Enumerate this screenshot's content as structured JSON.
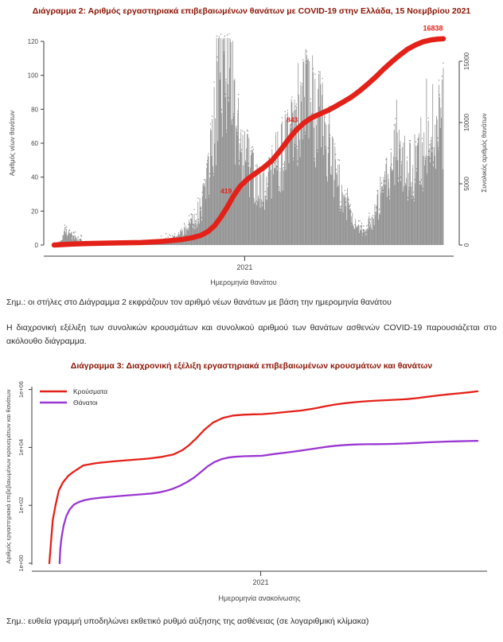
{
  "page": {
    "note1": "Σημ.: οι στήλες στο Διάγραμμα 2 εκφράζουν τον αριθμό νέων θανάτων με βάση την ημερομηνία θανάτου",
    "paragraph": "Η διαχρονική εξέλιξη των συνολικών κρουσμάτων και συνολικού αριθμού των θανάτων ασθενών COVID-19 παρουσιάζεται στο ακόλουθο διάγραμμα.",
    "note2": "Σημ.: ευθεία γραμμή υποδηλώνει εκθετικό ρυθμό αύξησης της ασθένειας (σε λογαριθμική κλίμακα)"
  },
  "colors": {
    "accent_red": "#e32119",
    "accent_purple": "#9a36d2",
    "bars": "#8f8f8f",
    "bar_speck": "#4d4d4d",
    "title": "#8b1505",
    "text": "#2b2b2b",
    "axis": "#3c3c3c",
    "tick_text": "#444444"
  },
  "chart_data": [
    {
      "id": "chart2",
      "type": "bar",
      "title": "Διάγραμμα 2: Αριθμός εργαστηριακά επιβεβαιωμένων θανάτων με COVID-19 στην Ελλάδα, 15 Νοεμβρίου 2021",
      "xlabel": "Ημερομηνία θανάτου",
      "ylabel_left": "Αριθμός νέων θανάτων",
      "ylabel_right": "Συνολικός αριθμός θανάτων",
      "yticks_left": [
        0,
        20,
        40,
        60,
        80,
        100,
        120
      ],
      "ylim_left": [
        0,
        124
      ],
      "yticks_right": [
        0,
        5000,
        10000,
        15000
      ],
      "ylim_right": [
        0,
        15000
      ],
      "x_ticks": [
        {
          "label": "2021",
          "day": 306
        }
      ],
      "days_total": 625,
      "daily_envelope": [
        [
          0,
          0
        ],
        [
          8,
          2
        ],
        [
          14,
          5
        ],
        [
          20,
          8
        ],
        [
          26,
          6
        ],
        [
          32,
          5
        ],
        [
          40,
          3
        ],
        [
          50,
          2
        ],
        [
          62,
          1
        ],
        [
          75,
          1
        ],
        [
          90,
          1
        ],
        [
          105,
          1
        ],
        [
          120,
          1
        ],
        [
          135,
          1
        ],
        [
          150,
          2
        ],
        [
          162,
          2
        ],
        [
          175,
          3
        ],
        [
          186,
          4
        ],
        [
          196,
          5
        ],
        [
          205,
          7
        ],
        [
          212,
          9
        ],
        [
          220,
          12
        ],
        [
          228,
          16
        ],
        [
          236,
          22
        ],
        [
          243,
          32
        ],
        [
          249,
          45
        ],
        [
          255,
          62
        ],
        [
          260,
          80
        ],
        [
          265,
          100
        ],
        [
          269,
          113
        ],
        [
          273,
          120
        ],
        [
          277,
          113
        ],
        [
          281,
          102
        ],
        [
          286,
          92
        ],
        [
          291,
          82
        ],
        [
          296,
          72
        ],
        [
          301,
          64
        ],
        [
          306,
          56
        ],
        [
          312,
          48
        ],
        [
          318,
          42
        ],
        [
          325,
          37
        ],
        [
          332,
          34
        ],
        [
          340,
          35
        ],
        [
          347,
          39
        ],
        [
          354,
          45
        ],
        [
          361,
          52
        ],
        [
          368,
          58
        ],
        [
          375,
          64
        ],
        [
          382,
          71
        ],
        [
          388,
          78
        ],
        [
          394,
          85
        ],
        [
          400,
          92
        ],
        [
          405,
          97
        ],
        [
          410,
          93
        ],
        [
          415,
          87
        ],
        [
          421,
          81
        ],
        [
          428,
          73
        ],
        [
          435,
          64
        ],
        [
          442,
          55
        ],
        [
          449,
          47
        ],
        [
          456,
          39
        ],
        [
          463,
          32
        ],
        [
          470,
          25
        ],
        [
          477,
          19
        ],
        [
          483,
          14
        ],
        [
          489,
          11
        ],
        [
          495,
          9
        ],
        [
          501,
          10
        ],
        [
          507,
          13
        ],
        [
          513,
          17
        ],
        [
          519,
          23
        ],
        [
          525,
          30
        ],
        [
          531,
          36
        ],
        [
          537,
          42
        ],
        [
          543,
          48
        ],
        [
          549,
          52
        ],
        [
          555,
          54
        ],
        [
          560,
          52
        ],
        [
          566,
          48
        ],
        [
          572,
          45
        ],
        [
          578,
          46
        ],
        [
          584,
          50
        ],
        [
          590,
          55
        ],
        [
          596,
          60
        ],
        [
          602,
          65
        ],
        [
          608,
          70
        ],
        [
          614,
          74
        ],
        [
          620,
          78
        ],
        [
          625,
          80
        ]
      ],
      "cumulative": [
        [
          0,
          0
        ],
        [
          30,
          80
        ],
        [
          60,
          130
        ],
        [
          100,
          170
        ],
        [
          140,
          200
        ],
        [
          175,
          300
        ],
        [
          205,
          450
        ],
        [
          222,
          600
        ],
        [
          235,
          780
        ],
        [
          247,
          1100
        ],
        [
          258,
          1600
        ],
        [
          268,
          2300
        ],
        [
          278,
          3100
        ],
        [
          288,
          4000
        ],
        [
          298,
          4750
        ],
        [
          310,
          5350
        ],
        [
          322,
          5800
        ],
        [
          336,
          6300
        ],
        [
          350,
          6900
        ],
        [
          363,
          7700
        ],
        [
          376,
          8600
        ],
        [
          389,
          9400
        ],
        [
          402,
          10000
        ],
        [
          414,
          10400
        ],
        [
          427,
          10700
        ],
        [
          440,
          11000
        ],
        [
          453,
          11350
        ],
        [
          465,
          11700
        ],
        [
          478,
          12100
        ],
        [
          491,
          12600
        ],
        [
          504,
          13150
        ],
        [
          517,
          13750
        ],
        [
          529,
          14350
        ],
        [
          542,
          14950
        ],
        [
          555,
          15500
        ],
        [
          568,
          16000
        ],
        [
          581,
          16350
        ],
        [
          593,
          16600
        ],
        [
          606,
          16750
        ],
        [
          616,
          16810
        ],
        [
          625,
          16838
        ]
      ],
      "annotations": [
        {
          "label": "419",
          "day": 284
        },
        {
          "label": "843",
          "day": 390
        }
      ],
      "end_label": {
        "label": "16838",
        "day": 625,
        "value": 16838
      }
    },
    {
      "id": "chart3",
      "type": "line",
      "log_scale": true,
      "title": "Διάγραμμα 3: Διαχρονική εξέλιξη εργαστηριακά επιβεβαιωμένων κρουσμάτων και θανάτων",
      "xlabel": "Ημερομηνία ανακοίνωσης",
      "ylabel": "Αριθμός εργαστηριακά επιβεβαιωμένων κρουσμάτων και θανάτων",
      "yticks": [
        {
          "label": "1e+00",
          "value": 1
        },
        {
          "label": "1e+02",
          "value": 100
        },
        {
          "label": "1e+04",
          "value": 10000
        },
        {
          "label": "1e+06",
          "value": 1000000
        }
      ],
      "x_ticks": [
        {
          "label": "2021",
          "day": 310
        }
      ],
      "days_total": 628,
      "legend": [
        "Κρούσματα",
        "Θάνατοι"
      ],
      "series": [
        {
          "name": "Κρούσματα",
          "color_key": "accent_red",
          "points": [
            [
              0,
              1
            ],
            [
              2,
              4
            ],
            [
              5,
              31
            ],
            [
              9,
              99
            ],
            [
              14,
              331
            ],
            [
              20,
              624
            ],
            [
              28,
              1061
            ],
            [
              35,
              1415
            ],
            [
              50,
              2400
            ],
            [
              70,
              2900
            ],
            [
              95,
              3300
            ],
            [
              120,
              3700
            ],
            [
              145,
              4100
            ],
            [
              165,
              4700
            ],
            [
              182,
              5700
            ],
            [
              195,
              8000
            ],
            [
              205,
              12000
            ],
            [
              215,
              20000
            ],
            [
              228,
              42000
            ],
            [
              240,
              72000
            ],
            [
              255,
              105000
            ],
            [
              270,
              126000
            ],
            [
              285,
              135000
            ],
            [
              300,
              139000
            ],
            [
              312,
              141000
            ],
            [
              330,
              152000
            ],
            [
              350,
              170000
            ],
            [
              370,
              188000
            ],
            [
              390,
              225000
            ],
            [
              405,
              265000
            ],
            [
              420,
              305000
            ],
            [
              435,
              340000
            ],
            [
              450,
              368000
            ],
            [
              465,
              392000
            ],
            [
              480,
              412000
            ],
            [
              495,
              428000
            ],
            [
              510,
              444000
            ],
            [
              525,
              466000
            ],
            [
              540,
              505000
            ],
            [
              555,
              562000
            ],
            [
              570,
              622000
            ],
            [
              585,
              682000
            ],
            [
              600,
              735000
            ],
            [
              614,
              792000
            ],
            [
              628,
              862000
            ]
          ]
        },
        {
          "name": "Θάνατοι",
          "color_key": "accent_purple",
          "points": [
            [
              15,
              1
            ],
            [
              16,
              3
            ],
            [
              18,
              8
            ],
            [
              21,
              20
            ],
            [
              25,
              43
            ],
            [
              30,
              73
            ],
            [
              36,
              105
            ],
            [
              43,
              130
            ],
            [
              52,
              152
            ],
            [
              62,
              168
            ],
            [
              75,
              183
            ],
            [
              90,
              197
            ],
            [
              105,
              211
            ],
            [
              120,
              225
            ],
            [
              135,
              239
            ],
            [
              150,
              256
            ],
            [
              162,
              282
            ],
            [
              172,
              320
            ],
            [
              182,
              380
            ],
            [
              192,
              480
            ],
            [
              202,
              640
            ],
            [
              212,
              900
            ],
            [
              222,
              1400
            ],
            [
              232,
              2200
            ],
            [
              242,
              3100
            ],
            [
              252,
              3900
            ],
            [
              262,
              4450
            ],
            [
              272,
              4750
            ],
            [
              285,
              4940
            ],
            [
              300,
              5050
            ],
            [
              312,
              5150
            ],
            [
              330,
              5900
            ],
            [
              350,
              6750
            ],
            [
              370,
              7800
            ],
            [
              390,
              9200
            ],
            [
              405,
              10400
            ],
            [
              420,
              11400
            ],
            [
              435,
              12150
            ],
            [
              450,
              12650
            ],
            [
              465,
              12900
            ],
            [
              480,
              13000
            ],
            [
              495,
              13150
            ],
            [
              510,
              13400
            ],
            [
              525,
              13800
            ],
            [
              540,
              14350
            ],
            [
              555,
              14950
            ],
            [
              570,
              15500
            ],
            [
              585,
              15950
            ],
            [
              600,
              16300
            ],
            [
              614,
              16600
            ],
            [
              628,
              16838
            ]
          ]
        }
      ]
    }
  ]
}
